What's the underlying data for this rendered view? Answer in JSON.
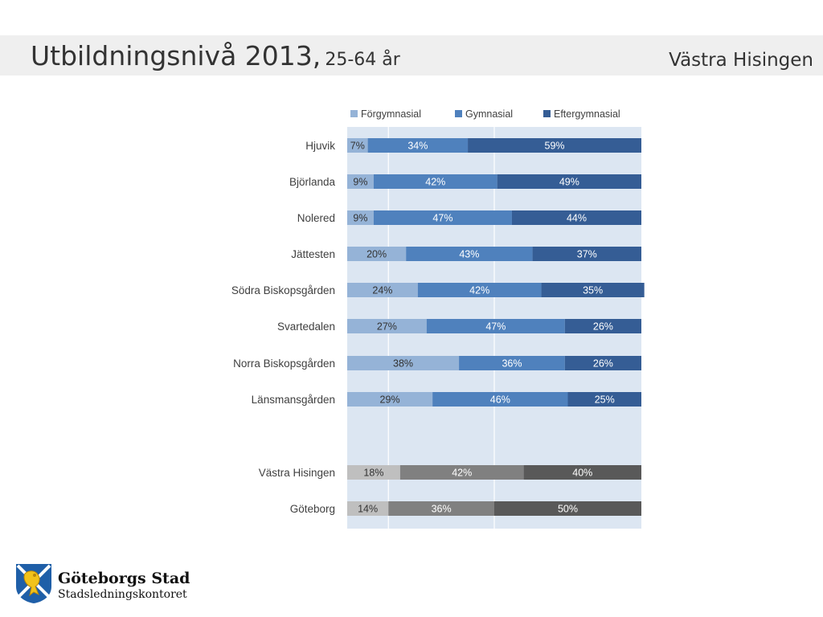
{
  "slide": {
    "title": "Utbildningsnivå 2013,",
    "subtitle": "25-64 år",
    "region": "Västra Hisingen"
  },
  "org": {
    "name": "Göteborgs Stad",
    "unit": "Stadsledningskontoret",
    "logo_icon": "goteborg-coat-of-arms-icon"
  },
  "chart_data": {
    "type": "bar",
    "orientation": "horizontal",
    "stacked": "percent",
    "legend_position": "top",
    "grid": true,
    "xlim": [
      0,
      100
    ],
    "categories": [
      "Hjuvik",
      "Björlanda",
      "Nolered",
      "Jättesten",
      "Södra Biskopsgården",
      "Svartedalen",
      "Norra Biskopsgården",
      "Länsmansgården",
      "Västra Hisingen",
      "Göteborg"
    ],
    "series": [
      {
        "name": "Förgymnasial",
        "color": "#95b3d7",
        "values": [
          7,
          9,
          9,
          20,
          24,
          27,
          38,
          29,
          18,
          14
        ]
      },
      {
        "name": "Gymnasial",
        "color": "#4f81bd",
        "values": [
          34,
          42,
          47,
          43,
          42,
          47,
          36,
          46,
          42,
          36
        ]
      },
      {
        "name": "Eftergymnasial",
        "color": "#355d95",
        "values": [
          59,
          49,
          44,
          37,
          35,
          26,
          26,
          25,
          40,
          50
        ]
      }
    ],
    "comparison_colors": [
      "#bfbfbf",
      "#808080",
      "#595959"
    ],
    "comparison_categories": [
      "Västra Hisingen",
      "Göteborg"
    ]
  }
}
